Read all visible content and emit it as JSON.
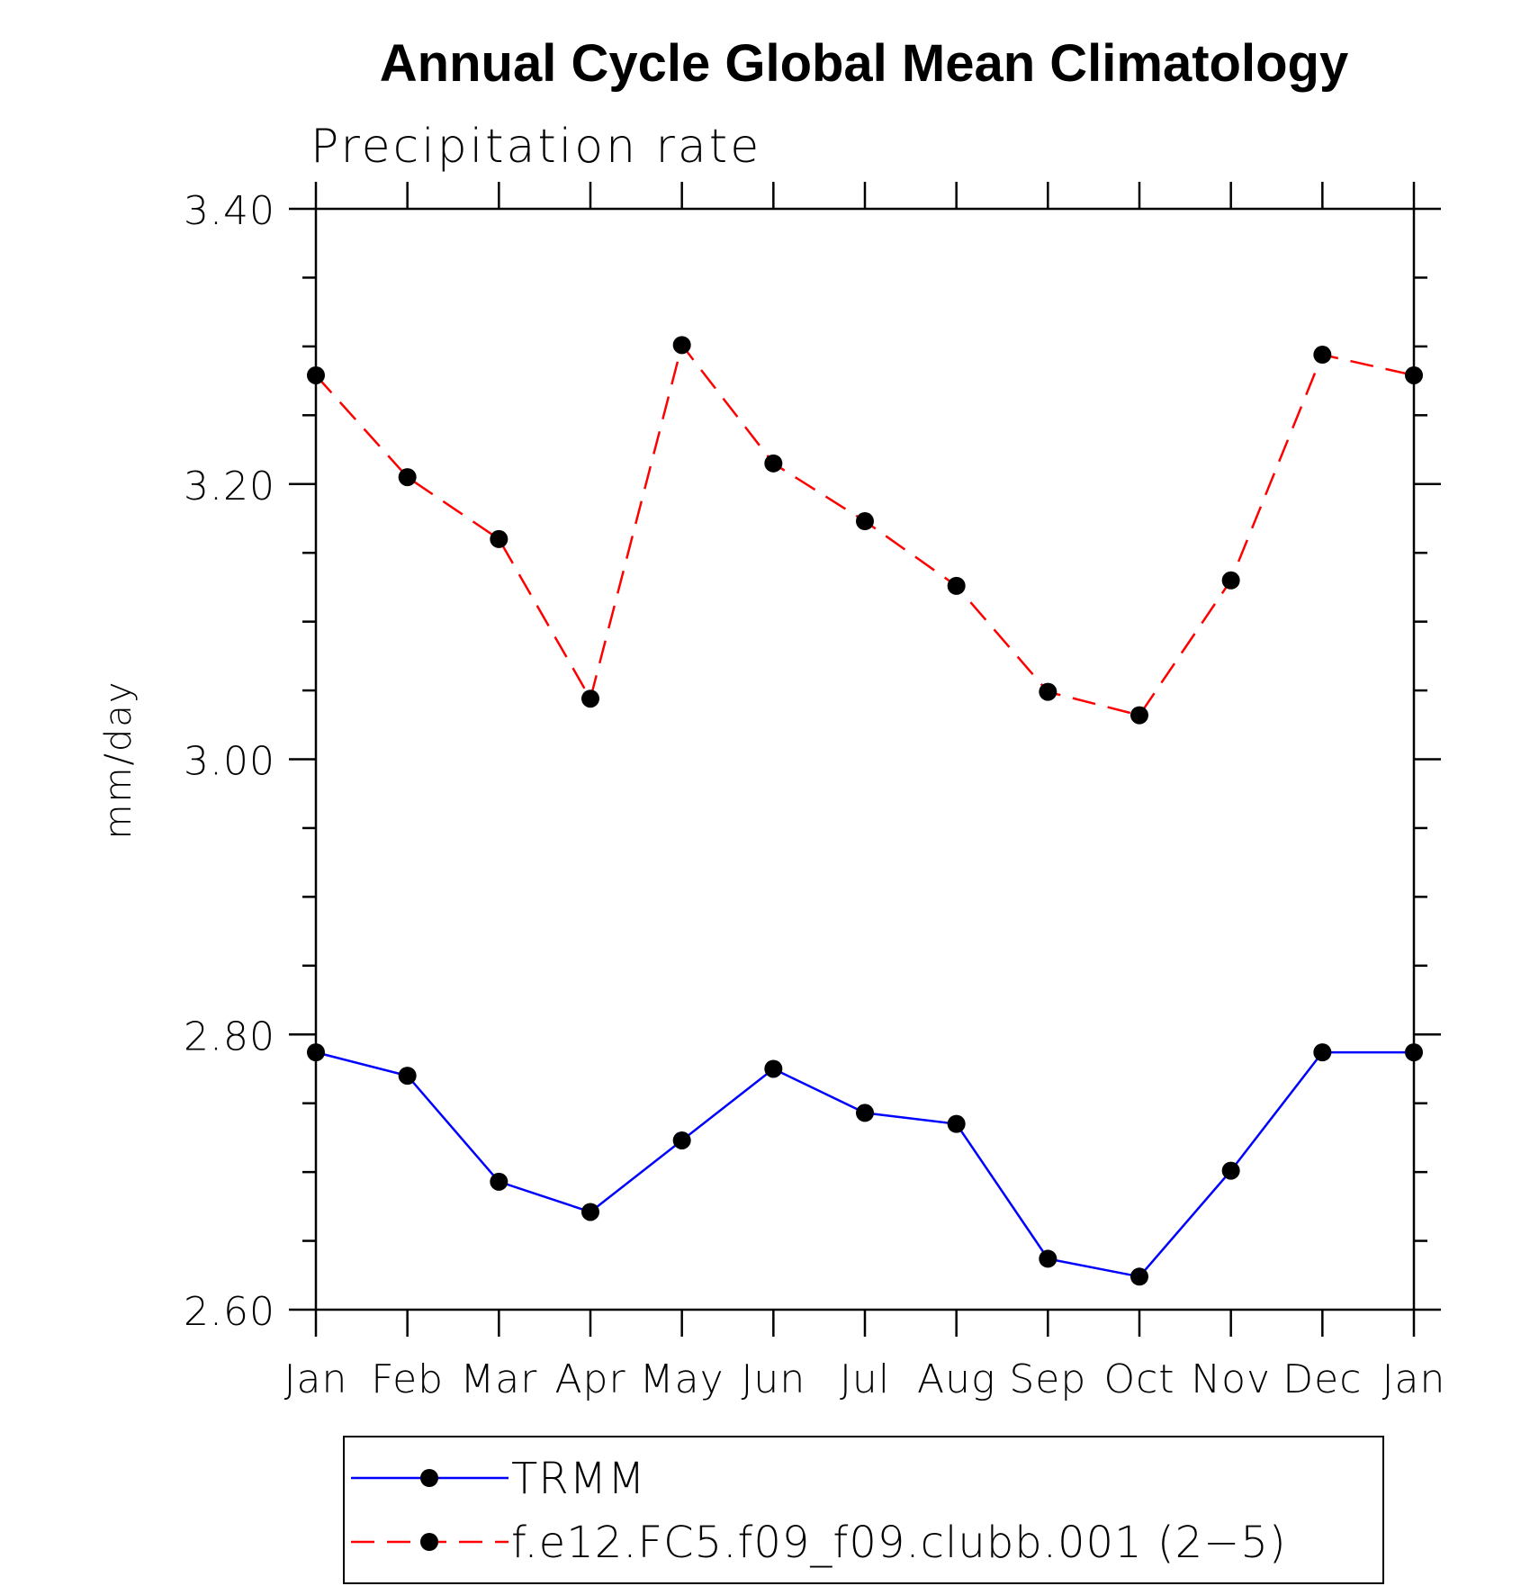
{
  "chart_data": {
    "type": "line",
    "title": "Annual Cycle Global Mean Climatology",
    "subtitle": "Precipitation rate",
    "ylabel": "mm/day",
    "xlabel": "",
    "categories": [
      "Jan",
      "Feb",
      "Mar",
      "Apr",
      "May",
      "Jun",
      "Jul",
      "Aug",
      "Sep",
      "Oct",
      "Nov",
      "Dec",
      "Jan"
    ],
    "ylim": [
      2.6,
      3.4
    ],
    "yticks": [
      "2.60",
      "2.80",
      "3.00",
      "3.20",
      "3.40"
    ],
    "legend_position": "bottom",
    "grid": false,
    "series": [
      {
        "name": "TRMM",
        "color": "#0000ff",
        "line_style": "solid",
        "marker": "filled-circle",
        "values": [
          2.787,
          2.77,
          2.693,
          2.671,
          2.723,
          2.775,
          2.743,
          2.735,
          2.637,
          2.624,
          2.701,
          2.787,
          2.787
        ]
      },
      {
        "name": "f.e12.FC5.f09_f09.clubb.001 (2−5)",
        "color": "#ff0000",
        "line_style": "dashed",
        "marker": "filled-circle",
        "values": [
          3.279,
          3.205,
          3.16,
          3.044,
          3.301,
          3.215,
          3.173,
          3.126,
          3.049,
          3.032,
          3.13,
          3.294,
          3.279
        ]
      }
    ]
  }
}
